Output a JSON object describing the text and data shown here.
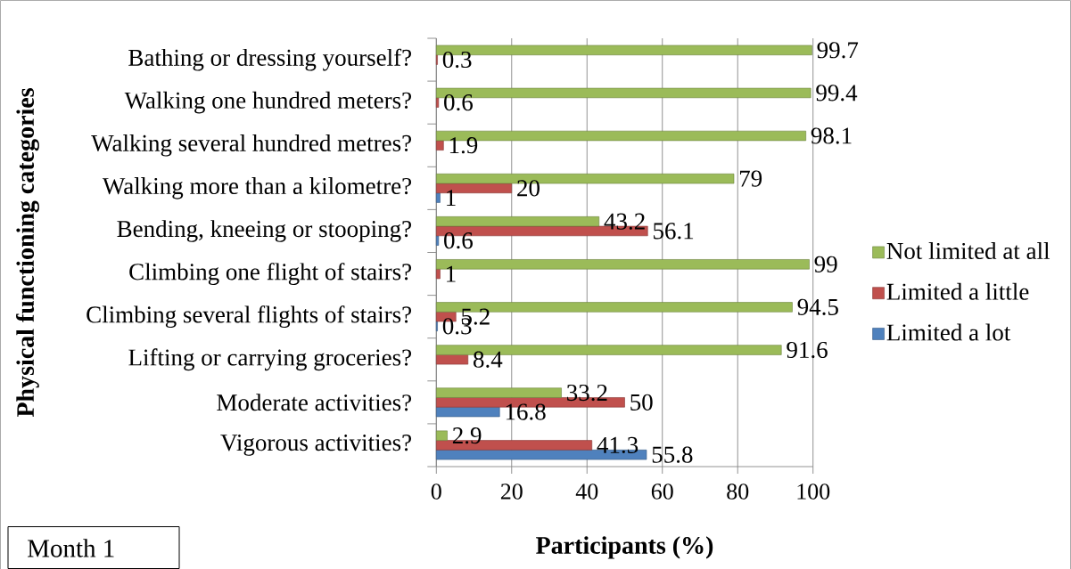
{
  "chart_data": {
    "type": "bar",
    "orientation": "horizontal",
    "xlabel": "Participants (%)",
    "ylabel": "Physical functioning categories",
    "categories": [
      "Bathing or dressing yourself?",
      "Walking one hundred meters?",
      "Walking several hundred metres?",
      "Walking more than a kilometre?",
      "Bending, kneeing or stooping?",
      "Climbing one flight of stairs?",
      "Climbing several flights of stairs?",
      "Lifting or carrying groceries?",
      "Moderate activities?",
      "Vigorous activities?"
    ],
    "series": [
      {
        "name": "Limited a lot",
        "color": "#4f81bd",
        "values": [
          null,
          null,
          null,
          1,
          0.6,
          null,
          0.3,
          null,
          16.8,
          55.8
        ]
      },
      {
        "name": "Limited a little",
        "color": "#c0504d",
        "values": [
          0.3,
          0.6,
          1.9,
          20,
          56.1,
          1,
          5.2,
          8.4,
          50,
          41.3
        ]
      },
      {
        "name": "Not limited at all",
        "color": "#9bbb59",
        "values": [
          99.7,
          99.4,
          98.1,
          79,
          43.2,
          99,
          94.5,
          91.6,
          33.2,
          2.9
        ]
      }
    ],
    "xlim": [
      0,
      100
    ],
    "xticks": [
      0,
      20,
      40,
      60,
      80,
      100
    ],
    "grid": "x",
    "legend": "right",
    "data_labels": true,
    "annotations": [
      "Month 1"
    ]
  }
}
